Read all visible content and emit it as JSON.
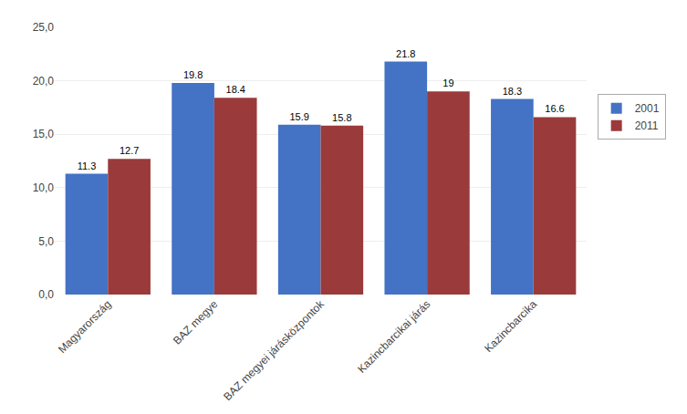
{
  "chart_data": {
    "type": "bar",
    "categories": [
      "Magyarország",
      "BAZ megye",
      "BAZ megyei járásközpontok",
      "Kazincbarcikai járás",
      "Kazincbarcika"
    ],
    "series": [
      {
        "name": "2001",
        "color": "#4472C4",
        "values": [
          11.3,
          19.8,
          15.9,
          21.8,
          18.3
        ]
      },
      {
        "name": "2011",
        "color": "#9B3A3A",
        "values": [
          12.7,
          18.4,
          15.8,
          19.0,
          16.6
        ]
      }
    ],
    "ylim": [
      0,
      25
    ],
    "yticks": [
      {
        "value": 0.0,
        "label": "0,0"
      },
      {
        "value": 5.0,
        "label": "5,0"
      },
      {
        "value": 10.0,
        "label": "10,0"
      },
      {
        "value": 15.0,
        "label": "15,0"
      },
      {
        "value": 20.0,
        "label": "20,0"
      },
      {
        "value": 25.0,
        "label": "25,0"
      }
    ],
    "grid": true,
    "data_labels": true,
    "legend": "right"
  }
}
